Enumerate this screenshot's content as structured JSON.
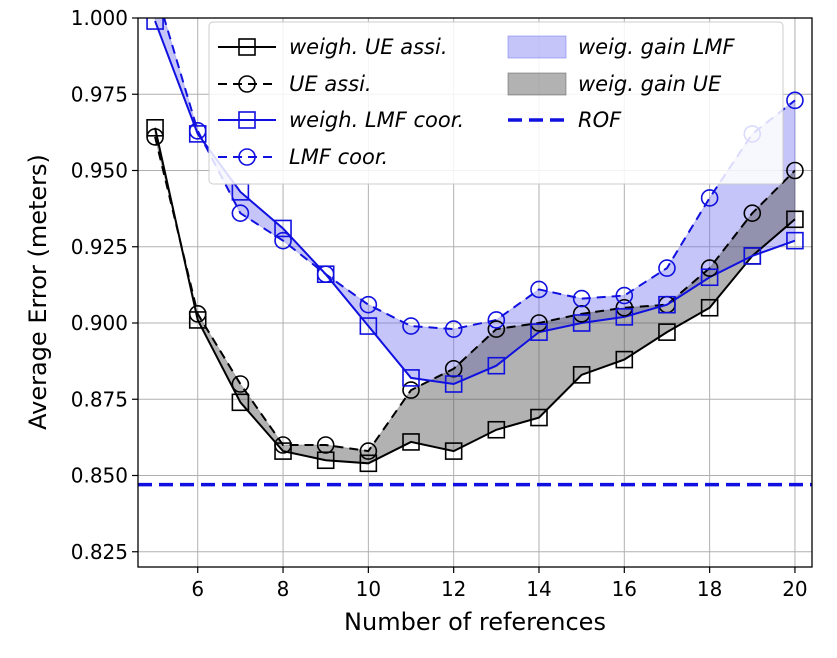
{
  "chart_data": {
    "type": "line",
    "xlabel": "Number of references",
    "ylabel": "Average Error (meters)",
    "xlim": [
      4.6,
      20.4
    ],
    "ylim": [
      0.82,
      1.0
    ],
    "xticks": [
      6,
      8,
      10,
      12,
      14,
      16,
      18,
      20
    ],
    "yticks": [
      0.825,
      0.85,
      0.875,
      0.9,
      0.925,
      0.95,
      0.975,
      1.0
    ],
    "xtick_labels": [
      "6",
      "8",
      "10",
      "12",
      "14",
      "16",
      "18",
      "20"
    ],
    "ytick_labels": [
      "0.825",
      "0.850",
      "0.875",
      "0.900",
      "0.925",
      "0.950",
      "0.975",
      "1.000"
    ],
    "grid": true,
    "legend_position": "top-center",
    "x": [
      5,
      6,
      7,
      8,
      9,
      10,
      11,
      12,
      13,
      14,
      15,
      16,
      17,
      18,
      19,
      20
    ],
    "series": [
      {
        "name": "weigh. UE assi.",
        "color": "#000000",
        "line": "solid",
        "marker": "square",
        "values": [
          0.964,
          0.901,
          0.874,
          0.858,
          0.855,
          0.854,
          0.861,
          0.858,
          0.865,
          0.869,
          0.883,
          0.888,
          0.897,
          0.905,
          0.922,
          0.934
        ]
      },
      {
        "name": "UE assi.",
        "color": "#000000",
        "line": "dashed",
        "marker": "circle",
        "values": [
          0.961,
          0.903,
          0.88,
          0.86,
          0.86,
          0.858,
          0.878,
          0.885,
          0.898,
          0.9,
          0.903,
          0.905,
          0.906,
          0.918,
          0.936,
          0.95
        ]
      },
      {
        "name": "weigh. LMF coor.",
        "color": "#1010e0",
        "line": "solid",
        "marker": "square",
        "values": [
          0.999,
          0.962,
          0.943,
          0.931,
          0.916,
          0.899,
          0.882,
          0.88,
          0.886,
          0.897,
          0.9,
          0.902,
          0.906,
          0.915,
          0.922,
          0.927
        ]
      },
      {
        "name": "LMF coor.",
        "color": "#1010e0",
        "line": "dashed",
        "marker": "circle",
        "values": [
          1.01,
          0.963,
          0.936,
          0.927,
          0.916,
          0.906,
          0.899,
          0.898,
          0.901,
          0.911,
          0.908,
          0.909,
          0.918,
          0.941,
          0.962,
          0.973
        ]
      }
    ],
    "reference_line": {
      "name": "ROF",
      "y": 0.847,
      "color": "#1010e0",
      "line": "dashed"
    },
    "fills": [
      {
        "name": "weig. gain LMF",
        "between": [
          "weigh. LMF coor.",
          "LMF coor."
        ],
        "color": "#6f6ff0",
        "opacity": 0.4
      },
      {
        "name": "weig. gain UE",
        "between": [
          "weigh. UE assi.",
          "UE assi."
        ],
        "color": "#555555",
        "opacity": 0.45
      }
    ],
    "legend": [
      {
        "name": "weigh. UE assi.",
        "label": "weigh. UE assi.",
        "kind": "line",
        "color": "#000000",
        "line": "solid",
        "marker": "square"
      },
      {
        "name": "UE assi.",
        "label": "UE assi.",
        "kind": "line",
        "color": "#000000",
        "line": "dashed",
        "marker": "circle"
      },
      {
        "name": "weigh. LMF coor.",
        "label": "weigh. LMF coor.",
        "kind": "line",
        "color": "#1010e0",
        "line": "solid",
        "marker": "square"
      },
      {
        "name": "LMF coor.",
        "label": "LMF coor.",
        "kind": "line",
        "color": "#1010e0",
        "line": "dashed",
        "marker": "circle"
      },
      {
        "name": "weig. gain LMF",
        "label": "weig. gain LMF",
        "kind": "fill",
        "color": "#6f6ff0",
        "opacity": 0.4
      },
      {
        "name": "weig. gain UE",
        "label": "weig. gain UE",
        "kind": "fill",
        "color": "#555555",
        "opacity": 0.45
      },
      {
        "name": "ROF",
        "label": "ROF",
        "kind": "line",
        "color": "#1010e0",
        "line": "dashed",
        "marker": "none"
      }
    ]
  }
}
